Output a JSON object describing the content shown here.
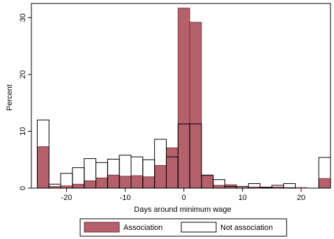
{
  "chart_data": {
    "type": "bar",
    "xlabel": "Days around minimum wage",
    "ylabel": "Percent",
    "xlim": [
      -26,
      25
    ],
    "ylim": [
      0,
      32.5
    ],
    "xticks": [
      -20,
      -10,
      0,
      10,
      20
    ],
    "yticks": [
      0,
      10,
      20,
      30
    ],
    "bin_width": 2,
    "legend_position": "bottom",
    "colors": {
      "association": "#b5616b",
      "association_edge": "#6e2a33",
      "not_association": "#ffffff",
      "not_association_edge": "#000000"
    },
    "series": [
      {
        "name": "Association",
        "bins": [
          {
            "x": -24,
            "value": 7.3
          },
          {
            "x": -22,
            "value": 0.3
          },
          {
            "x": -20,
            "value": 0.4
          },
          {
            "x": -18,
            "value": 0.7
          },
          {
            "x": -16,
            "value": 1.3
          },
          {
            "x": -14,
            "value": 1.8
          },
          {
            "x": -12,
            "value": 2.3
          },
          {
            "x": -10,
            "value": 2.1
          },
          {
            "x": -8,
            "value": 2.2
          },
          {
            "x": -6,
            "value": 2.0
          },
          {
            "x": -4,
            "value": 4.0
          },
          {
            "x": -2,
            "value": 7.1
          },
          {
            "x": 0,
            "value": 31.7
          },
          {
            "x": 2,
            "value": 29.2
          },
          {
            "x": 4,
            "value": 2.2
          },
          {
            "x": 6,
            "value": 0.5
          },
          {
            "x": 8,
            "value": 0.6
          },
          {
            "x": 10,
            "value": 0.1
          },
          {
            "x": 12,
            "value": 0.2
          },
          {
            "x": 14,
            "value": 0.2
          },
          {
            "x": 16,
            "value": 0.2
          },
          {
            "x": 18,
            "value": 0.1
          },
          {
            "x": 20,
            "value": 0.1
          },
          {
            "x": 22,
            "value": 0.0
          },
          {
            "x": 24,
            "value": 1.7
          }
        ]
      },
      {
        "name": "Not association",
        "bins": [
          {
            "x": -24,
            "value": 12.0
          },
          {
            "x": -22,
            "value": 0.7
          },
          {
            "x": -20,
            "value": 2.6
          },
          {
            "x": -18,
            "value": 3.6
          },
          {
            "x": -16,
            "value": 5.2
          },
          {
            "x": -14,
            "value": 4.5
          },
          {
            "x": -12,
            "value": 5.1
          },
          {
            "x": -10,
            "value": 5.8
          },
          {
            "x": -8,
            "value": 5.5
          },
          {
            "x": -6,
            "value": 5.0
          },
          {
            "x": -4,
            "value": 8.6
          },
          {
            "x": -2,
            "value": 5.5
          },
          {
            "x": 0,
            "value": 11.3
          },
          {
            "x": 2,
            "value": 11.3
          },
          {
            "x": 4,
            "value": 2.3
          },
          {
            "x": 6,
            "value": 1.5
          },
          {
            "x": 8,
            "value": 0.3
          },
          {
            "x": 10,
            "value": 0.3
          },
          {
            "x": 12,
            "value": 0.8
          },
          {
            "x": 14,
            "value": 0.1
          },
          {
            "x": 16,
            "value": 0.5
          },
          {
            "x": 18,
            "value": 0.8
          },
          {
            "x": 20,
            "value": 0.0
          },
          {
            "x": 22,
            "value": 0.0
          },
          {
            "x": 24,
            "value": 5.4
          }
        ]
      }
    ]
  }
}
